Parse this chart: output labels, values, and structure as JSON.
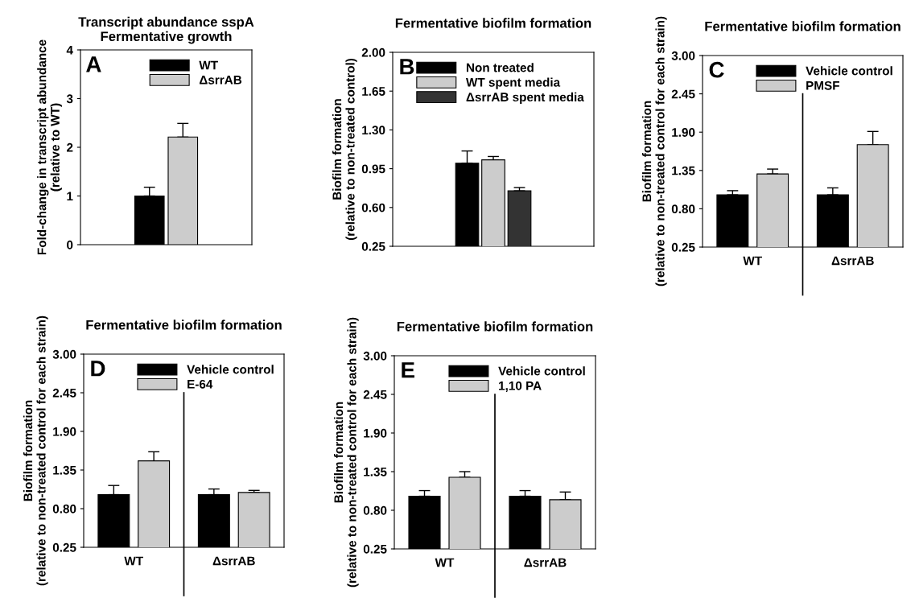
{
  "chart_data": [
    {
      "type": "bar",
      "title": "Transcript abundance sspA\nFermentative growth",
      "ylabel": "Fold-change in transcript abundance\n(relative to WT)",
      "categories": [
        null
      ],
      "ylim": [
        0,
        4
      ],
      "yticks": [
        0,
        1,
        2,
        3,
        4
      ],
      "legend": "top right",
      "grid": false,
      "annotations": [
        "A"
      ],
      "series": [
        {
          "name": "WT",
          "color": "#000000",
          "values": [
            1.0
          ],
          "errors": [
            [
              1.0,
              1.18
            ]
          ]
        },
        {
          "name": "ΔsrrAB",
          "color": "#cccccc",
          "values": [
            2.21
          ],
          "errors": [
            [
              2.21,
              2.49
            ]
          ]
        }
      ]
    },
    {
      "type": "bar",
      "title": "Fermentative biofilm formation",
      "ylabel": "Biofilm formation\n(relative to non-treated control)",
      "categories": [
        null
      ],
      "ylim": [
        0.25,
        2.0
      ],
      "yticks": [
        0.25,
        {
          "value": 0.6,
          "label": "0.60"
        },
        0.95,
        {
          "value": 1.3,
          "label": "1.30"
        },
        1.65,
        {
          "value": 2.0,
          "label": "2.00"
        }
      ],
      "legend": "top right",
      "grid": false,
      "annotations": [
        "B"
      ],
      "series": [
        {
          "name": "Non treated",
          "color": "#000000",
          "values": [
            1.0
          ],
          "errors": [
            [
              1.0,
              1.11
            ]
          ]
        },
        {
          "name": "WT spent media",
          "color": "#cccccc",
          "values": [
            1.03
          ],
          "errors": [
            [
              1.03,
              1.06
            ]
          ]
        },
        {
          "name": "ΔsrrAB spent media",
          "color": "#333333",
          "values": [
            0.75
          ],
          "errors": [
            [
              0.75,
              0.78
            ]
          ]
        }
      ]
    },
    {
      "type": "bar",
      "title": "Fermentative biofilm formation",
      "ylabel": "Biofilm formation\n(relative to non-treated control for each strain)",
      "categories": [
        "WT",
        "ΔsrrAB"
      ],
      "ylim": [
        0.25,
        3.0
      ],
      "yticks": [
        0.25,
        {
          "value": 0.8,
          "label": "0.80"
        },
        1.35,
        {
          "value": 1.9,
          "label": "1.90"
        },
        2.45,
        {
          "value": 3.0,
          "label": "3.00"
        }
      ],
      "legend": "top right",
      "grid": false,
      "annotations": [
        "C"
      ],
      "series": [
        {
          "name": "Vehicle control",
          "color": "#000000",
          "values": [
            1.0,
            1.0
          ],
          "errors": [
            [
              1.0,
              1.06
            ],
            [
              1.0,
              1.1
            ]
          ]
        },
        {
          "name": "PMSF",
          "color": "#cccccc",
          "values": [
            1.3,
            1.72
          ],
          "errors": [
            [
              1.3,
              1.37
            ],
            [
              1.72,
              1.91
            ]
          ]
        }
      ]
    },
    {
      "type": "bar",
      "title": "Fermentative biofilm formation",
      "ylabel": "Biofilm formation\n(relative to non-treated control for each strain)",
      "categories": [
        "WT",
        "ΔsrrAB"
      ],
      "ylim": [
        0.25,
        3.0
      ],
      "yticks": [
        0.25,
        {
          "value": 0.8,
          "label": "0.80"
        },
        1.35,
        {
          "value": 1.9,
          "label": "1.90"
        },
        2.45,
        {
          "value": 3.0,
          "label": "3.00"
        }
      ],
      "legend": "top right",
      "grid": false,
      "annotations": [
        "D"
      ],
      "series": [
        {
          "name": "Vehicle control",
          "color": "#000000",
          "values": [
            1.0,
            1.0
          ],
          "errors": [
            [
              1.0,
              1.13
            ],
            [
              1.0,
              1.08
            ]
          ]
        },
        {
          "name": "E-64",
          "color": "#cccccc",
          "values": [
            1.48,
            1.03
          ],
          "errors": [
            [
              1.48,
              1.61
            ],
            [
              1.03,
              1.06
            ]
          ]
        }
      ]
    },
    {
      "type": "bar",
      "title": "Fermentative biofilm formation",
      "ylabel": "Biofilm formation\n(relative to non-treated control for each strain)",
      "categories": [
        "WT",
        "ΔsrrAB"
      ],
      "ylim": [
        0.25,
        3.0
      ],
      "yticks": [
        0.25,
        {
          "value": 0.8,
          "label": "0.80"
        },
        1.35,
        {
          "value": 1.9,
          "label": "1.90"
        },
        2.45,
        {
          "value": 3.0,
          "label": "3.00"
        }
      ],
      "legend": "top right",
      "grid": false,
      "annotations": [
        "E"
      ],
      "series": [
        {
          "name": "Vehicle control",
          "color": "#000000",
          "values": [
            1.0,
            1.0
          ],
          "errors": [
            [
              1.0,
              1.08
            ],
            [
              1.0,
              1.08
            ]
          ]
        },
        {
          "name": "1,10 PA",
          "color": "#cccccc",
          "values": [
            1.27,
            0.95
          ],
          "errors": [
            [
              1.27,
              1.35
            ],
            [
              0.95,
              1.06
            ]
          ]
        }
      ]
    }
  ]
}
